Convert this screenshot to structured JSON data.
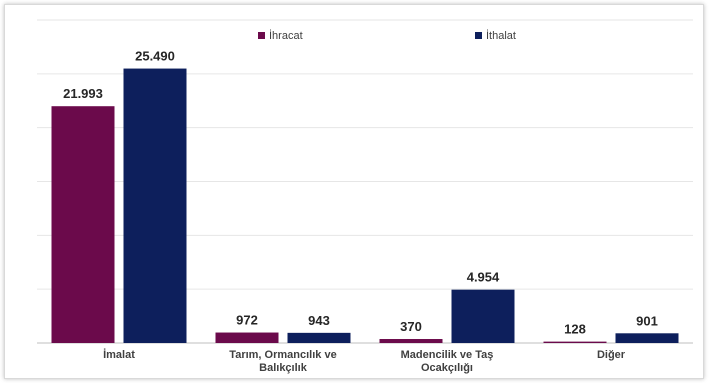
{
  "chart_data": {
    "type": "bar",
    "categories": [
      [
        "İmalat"
      ],
      [
        "Tarım, Ormancılık ve",
        "Balıkçılık"
      ],
      [
        "Madencilik ve Taş",
        "Ocakçılığı"
      ],
      [
        "Diğer"
      ]
    ],
    "series": [
      {
        "name": "İhracat",
        "color": "#6b0a4b",
        "values": [
          21993,
          972,
          370,
          128
        ],
        "labels": [
          "21.993",
          "972",
          "370",
          "128"
        ]
      },
      {
        "name": "İthalat",
        "color": "#0d1f5c",
        "values": [
          25490,
          943,
          4954,
          901
        ],
        "labels": [
          "25.490",
          "943",
          "4.954",
          "901"
        ]
      }
    ],
    "title": "",
    "xlabel": "",
    "ylabel": "",
    "ylim": [
      0,
      30000
    ],
    "gridlines": true,
    "legend_position": "top-center",
    "gridline_color": "#e6e6e6",
    "axis_color": "#bfbfbf"
  }
}
